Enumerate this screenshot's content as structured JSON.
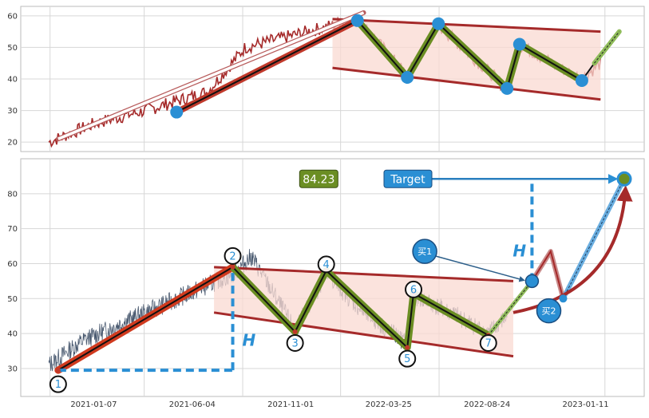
{
  "chart_data": [
    {
      "type": "line",
      "panel": "top",
      "title": "",
      "xlabel": "",
      "ylabel": "",
      "ylim": [
        17,
        63
      ],
      "y_ticks": [
        20,
        30,
        40,
        50,
        60
      ],
      "grid": true,
      "price_color": "#a52a2a",
      "trend_line": {
        "from": [
          0.06,
          21
        ],
        "to": [
          0.55,
          61
        ],
        "style": "outlined arrow"
      },
      "impulse_leg": {
        "from": [
          0.25,
          29.5
        ],
        "to": [
          0.54,
          58.5
        ],
        "color": "#c0392b"
      },
      "channel": {
        "upper": [
          [
            0.5,
            59
          ],
          [
            0.93,
            55
          ]
        ],
        "lower": [
          [
            0.5,
            43.5
          ],
          [
            0.93,
            33.5
          ]
        ],
        "fill": "#f9d9d1"
      },
      "zigzag_points": [
        {
          "x": 0.54,
          "y": 58.5
        },
        {
          "x": 0.62,
          "y": 40.5
        },
        {
          "x": 0.67,
          "y": 57.5
        },
        {
          "x": 0.78,
          "y": 37
        },
        {
          "x": 0.8,
          "y": 51
        },
        {
          "x": 0.9,
          "y": 39.5
        }
      ],
      "projection": {
        "from": [
          0.92,
          45
        ],
        "to": [
          0.96,
          55
        ]
      },
      "marker_color": "#2a8fd4"
    },
    {
      "type": "line",
      "panel": "bottom",
      "title": "",
      "xlabel": "",
      "ylabel": "",
      "ylim": [
        22,
        90
      ],
      "y_ticks": [
        30,
        40,
        50,
        60,
        70,
        80
      ],
      "x_ticks": [
        "2021-01-07",
        "2021-06-04",
        "2021-11-01",
        "2022-03-25",
        "2022-08-24",
        "2023-01-11"
      ],
      "grid": true,
      "price_color": "#4a5a70",
      "impulse_leg": {
        "from": [
          0.06,
          29.5
        ],
        "to": [
          0.34,
          59
        ]
      },
      "channel": {
        "upper": [
          [
            0.31,
            59
          ],
          [
            0.79,
            55
          ]
        ],
        "lower": [
          [
            0.31,
            46
          ],
          [
            0.79,
            33.5
          ]
        ],
        "fill": "#f9d9d1"
      },
      "points": [
        {
          "label": "1",
          "x": 0.06,
          "y": 29.5
        },
        {
          "label": "2",
          "x": 0.34,
          "y": 59
        },
        {
          "label": "3",
          "x": 0.44,
          "y": 40.5
        },
        {
          "label": "4",
          "x": 0.49,
          "y": 58
        },
        {
          "label": "5",
          "x": 0.62,
          "y": 36
        },
        {
          "label": "6",
          "x": 0.63,
          "y": 51.5
        },
        {
          "label": "7",
          "x": 0.75,
          "y": 39.5
        }
      ],
      "height_measure_1": {
        "base_y": 29.5,
        "top_y": 59,
        "x": 0.34,
        "label": "H"
      },
      "height_measure_2": {
        "base_y": 55,
        "top_y": 84.23,
        "x": 0.82,
        "label": "H"
      },
      "buy_points": [
        {
          "label": "买1",
          "x": 0.82,
          "y": 55
        },
        {
          "label": "买2",
          "x": 0.87,
          "y": 50
        }
      ],
      "target_value": "84.23",
      "target_label": "Target",
      "target_point": {
        "x": 0.97,
        "y": 84.23
      },
      "accent_green": "#6b8e23",
      "accent_blue": "#2a8fd4",
      "accent_red": "#a52a2a"
    }
  ]
}
